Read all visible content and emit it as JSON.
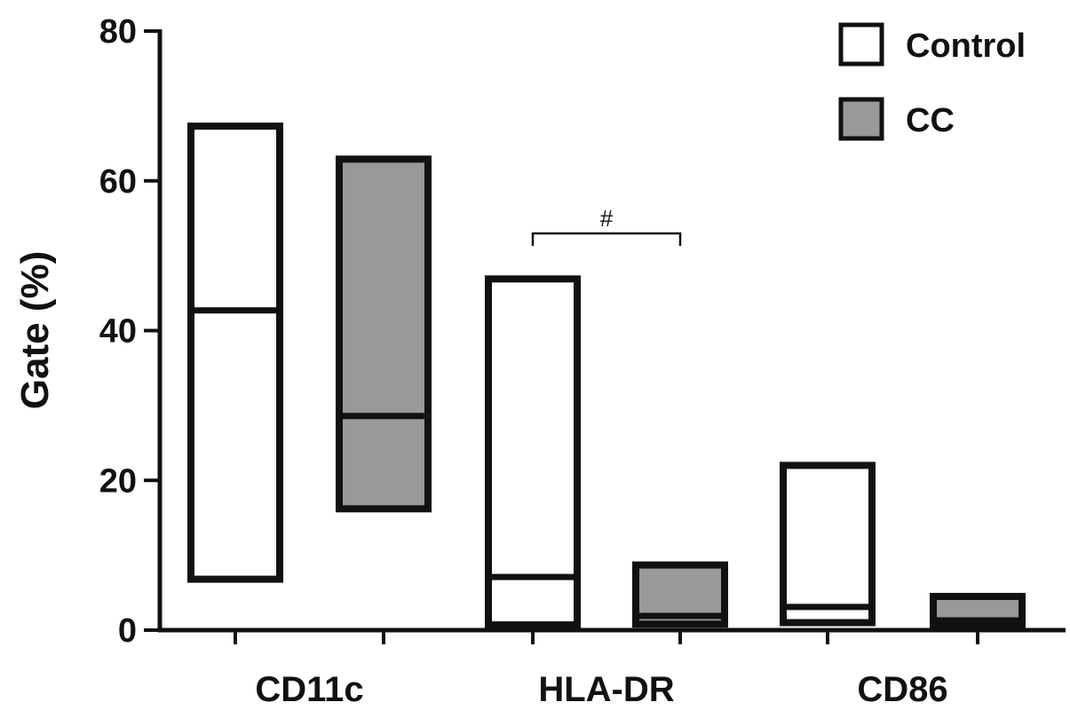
{
  "chart_data": {
    "type": "bar",
    "title": "",
    "xlabel": "",
    "ylabel": "Gate (%)",
    "ylim": [
      0,
      80
    ],
    "yticks": [
      "0",
      "20",
      "40",
      "60",
      "80"
    ],
    "categories": [
      "CD11c",
      "HLA-DR",
      "CD86"
    ],
    "series": [
      {
        "name": "Control",
        "color": "#ffffff",
        "values": [
          {
            "min": 6.8,
            "median": 42.7,
            "max": 67.3
          },
          {
            "min": 0.7,
            "median": 7.1,
            "max": 46.9
          },
          {
            "min": 1.0,
            "median": 3.1,
            "max": 22.0
          }
        ]
      },
      {
        "name": "CC",
        "color": "#999999",
        "values": [
          {
            "min": 16.2,
            "median": 28.6,
            "max": 62.9
          },
          {
            "min": 0.8,
            "median": 1.9,
            "max": 8.7
          },
          {
            "min": 0.6,
            "median": 1.3,
            "max": 4.5
          }
        ]
      }
    ],
    "legend": {
      "position": "top-right",
      "items": [
        "Control",
        "CC"
      ]
    },
    "annotations": [
      {
        "text": "#",
        "category": "HLA-DR",
        "between": [
          "Control",
          "CC"
        ]
      }
    ],
    "grid": false
  }
}
